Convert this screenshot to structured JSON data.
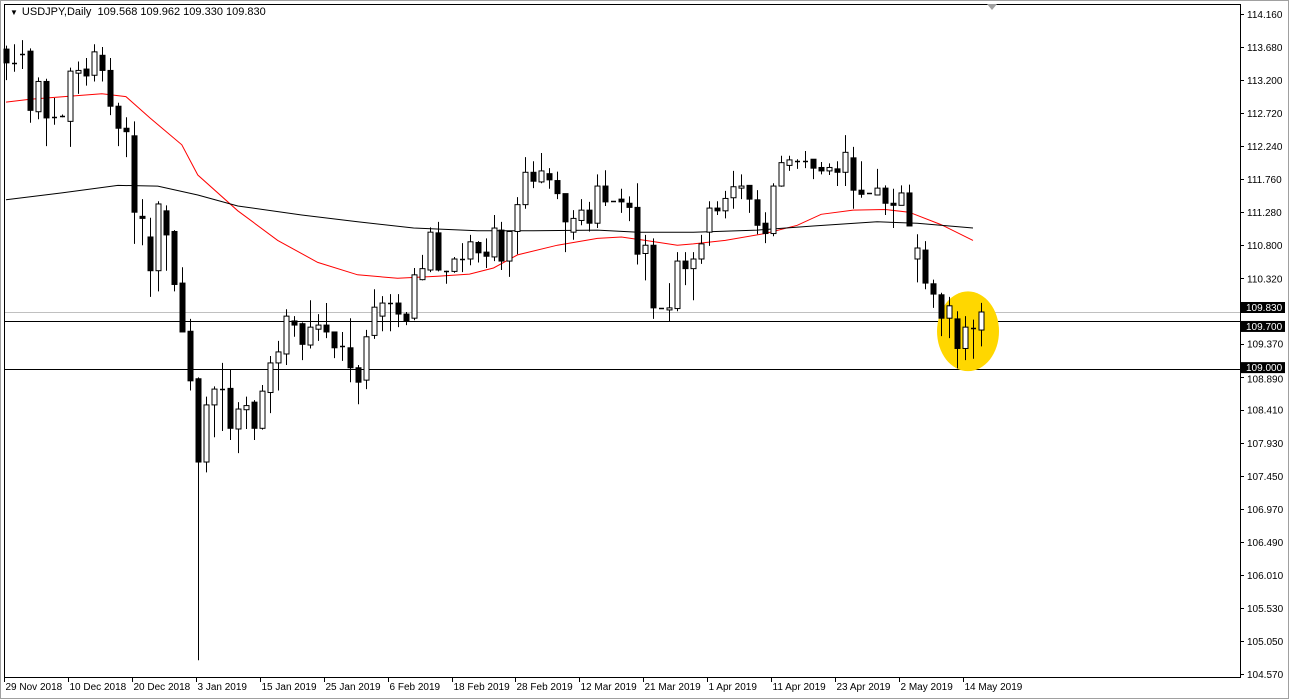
{
  "header": {
    "symbol_timeframe": "USDJPY,Daily",
    "ohlc_readout": "109.568 109.962 109.330 109.830",
    "menu_icon": "triangle-down-icon"
  },
  "colors": {
    "bull_body": "#ffffff",
    "bear_body": "#000000",
    "ma_fast": "#ff0000",
    "ma_slow": "#000000",
    "bid_line": "#c0c0c0",
    "level_lines": "#000000",
    "highlight": "#ffd700"
  },
  "chart_data": {
    "type": "candlestick",
    "symbol": "USDJPY",
    "timeframe": "Daily",
    "ylim": [
      104.57,
      114.16
    ],
    "grid": false,
    "y_ticks": [
      "114.160",
      "113.680",
      "113.200",
      "112.720",
      "112.240",
      "111.760",
      "111.280",
      "110.800",
      "110.320",
      "109.370",
      "108.890",
      "108.410",
      "107.930",
      "107.450",
      "106.970",
      "106.490",
      "106.010",
      "105.530",
      "105.050",
      "104.570"
    ],
    "price_labels": [
      {
        "value": "109.830",
        "kind": "bid"
      },
      {
        "value": "109.700",
        "kind": "level"
      },
      {
        "value": "109.000",
        "kind": "level"
      }
    ],
    "levels": [
      109.83,
      109.7,
      109.0
    ],
    "x_ticks": [
      "29 Nov 2018",
      "10 Dec 2018",
      "20 Dec 2018",
      "3 Jan 2019",
      "15 Jan 2019",
      "25 Jan 2019",
      "6 Feb 2019",
      "18 Feb 2019",
      "28 Feb 2019",
      "12 Mar 2019",
      "21 Mar 2019",
      "1 Apr 2019",
      "11 Apr 2019",
      "23 Apr 2019",
      "2 May 2019",
      "14 May 2019"
    ],
    "x_tick_every_bars": 8,
    "ohlc": [
      [
        113.65,
        113.7,
        113.2,
        113.45
      ],
      [
        113.45,
        113.72,
        113.32,
        113.43
      ],
      [
        113.58,
        113.78,
        113.36,
        113.58
      ],
      [
        113.62,
        113.66,
        112.58,
        112.76
      ],
      [
        112.74,
        113.24,
        112.63,
        113.18
      ],
      [
        113.18,
        113.22,
        112.24,
        112.65
      ],
      [
        112.66,
        112.94,
        112.55,
        112.66
      ],
      [
        112.68,
        112.7,
        112.66,
        112.68
      ],
      [
        112.6,
        113.38,
        112.23,
        113.33
      ],
      [
        113.3,
        113.47,
        113.0,
        113.34
      ],
      [
        113.36,
        113.52,
        113.12,
        113.26
      ],
      [
        113.27,
        113.72,
        113.18,
        113.61
      ],
      [
        113.56,
        113.68,
        113.18,
        113.34
      ],
      [
        113.34,
        113.52,
        112.69,
        112.82
      ],
      [
        112.82,
        112.87,
        112.24,
        112.5
      ],
      [
        112.5,
        112.66,
        112.08,
        112.45
      ],
      [
        112.39,
        112.6,
        110.82,
        111.28
      ],
      [
        111.22,
        111.47,
        110.8,
        111.19
      ],
      [
        110.92,
        111.2,
        110.05,
        110.43
      ],
      [
        110.43,
        111.44,
        110.13,
        111.4
      ],
      [
        111.3,
        111.38,
        110.43,
        110.95
      ],
      [
        111.0,
        111.02,
        110.13,
        110.23
      ],
      [
        110.25,
        110.48,
        109.54,
        109.54
      ],
      [
        109.55,
        109.73,
        108.69,
        108.83
      ],
      [
        108.86,
        108.88,
        104.77,
        107.65
      ],
      [
        107.65,
        108.6,
        107.5,
        108.48
      ],
      [
        108.48,
        108.75,
        108.01,
        108.71
      ],
      [
        108.69,
        109.09,
        108.1,
        108.71
      ],
      [
        108.72,
        108.99,
        107.97,
        108.14
      ],
      [
        108.13,
        108.52,
        107.78,
        108.42
      ],
      [
        108.41,
        108.6,
        108.13,
        108.47
      ],
      [
        108.52,
        108.55,
        107.97,
        108.14
      ],
      [
        108.14,
        108.77,
        108.12,
        108.68
      ],
      [
        108.66,
        109.19,
        108.36,
        109.09
      ],
      [
        109.09,
        109.41,
        108.69,
        109.25
      ],
      [
        109.22,
        109.87,
        109.06,
        109.77
      ],
      [
        109.7,
        109.77,
        109.47,
        109.64
      ],
      [
        109.66,
        109.68,
        109.13,
        109.36
      ],
      [
        109.35,
        110.0,
        109.3,
        109.61
      ],
      [
        109.58,
        109.8,
        109.41,
        109.64
      ],
      [
        109.64,
        109.96,
        109.45,
        109.54
      ],
      [
        109.54,
        109.54,
        109.16,
        109.31
      ],
      [
        109.31,
        109.54,
        109.12,
        109.33
      ],
      [
        109.31,
        109.74,
        108.81,
        109.02
      ],
      [
        109.02,
        109.06,
        108.49,
        108.81
      ],
      [
        108.84,
        109.57,
        108.71,
        109.47
      ],
      [
        109.49,
        110.16,
        109.44,
        109.9
      ],
      [
        109.77,
        110.06,
        109.55,
        109.96
      ],
      [
        109.96,
        110.09,
        109.55,
        109.96
      ],
      [
        109.96,
        110.09,
        109.61,
        109.8
      ],
      [
        109.8,
        109.83,
        109.64,
        109.7
      ],
      [
        109.74,
        110.47,
        109.71,
        110.37
      ],
      [
        110.3,
        110.66,
        110.29,
        110.46
      ],
      [
        110.44,
        111.06,
        110.41,
        110.99
      ],
      [
        110.98,
        111.14,
        110.42,
        110.44
      ],
      [
        110.43,
        110.43,
        110.24,
        110.42
      ],
      [
        110.42,
        110.63,
        110.4,
        110.6
      ],
      [
        110.6,
        110.83,
        110.41,
        110.6
      ],
      [
        110.6,
        110.95,
        110.51,
        110.85
      ],
      [
        110.84,
        110.86,
        110.55,
        110.69
      ],
      [
        110.7,
        110.9,
        110.47,
        110.64
      ],
      [
        110.63,
        111.24,
        110.57,
        111.05
      ],
      [
        111.02,
        111.14,
        110.44,
        110.57
      ],
      [
        110.57,
        111.0,
        110.34,
        111.0
      ],
      [
        111.0,
        111.5,
        110.67,
        111.39
      ],
      [
        111.39,
        112.08,
        111.33,
        111.86
      ],
      [
        111.86,
        112.02,
        111.63,
        111.73
      ],
      [
        111.72,
        112.14,
        111.7,
        111.88
      ],
      [
        111.84,
        111.92,
        111.62,
        111.75
      ],
      [
        111.74,
        111.87,
        111.47,
        111.55
      ],
      [
        111.55,
        111.55,
        110.7,
        111.14
      ],
      [
        110.99,
        111.31,
        110.88,
        111.19
      ],
      [
        111.16,
        111.47,
        111.09,
        111.31
      ],
      [
        111.31,
        111.43,
        111.0,
        111.12
      ],
      [
        111.12,
        111.83,
        111.05,
        111.66
      ],
      [
        111.66,
        111.89,
        111.37,
        111.43
      ],
      [
        111.44,
        111.44,
        111.44,
        111.44
      ],
      [
        111.47,
        111.62,
        111.27,
        111.43
      ],
      [
        111.41,
        111.51,
        111.15,
        111.35
      ],
      [
        111.35,
        111.7,
        110.52,
        110.67
      ],
      [
        110.68,
        110.95,
        110.29,
        110.8
      ],
      [
        110.8,
        110.9,
        109.73,
        109.89
      ],
      [
        109.89,
        109.89,
        109.89,
        109.89
      ],
      [
        109.86,
        110.25,
        109.7,
        109.89
      ],
      [
        109.88,
        110.7,
        109.84,
        110.57
      ],
      [
        110.57,
        110.7,
        110.22,
        110.46
      ],
      [
        110.46,
        110.7,
        110.0,
        110.6
      ],
      [
        110.6,
        110.95,
        110.53,
        110.82
      ],
      [
        110.99,
        111.44,
        110.79,
        111.34
      ],
      [
        111.34,
        111.44,
        111.24,
        111.3
      ],
      [
        111.3,
        111.59,
        111.19,
        111.48
      ],
      [
        111.49,
        111.88,
        111.33,
        111.65
      ],
      [
        111.63,
        111.83,
        111.47,
        111.66
      ],
      [
        111.67,
        111.67,
        111.27,
        111.47
      ],
      [
        111.46,
        111.6,
        110.96,
        111.09
      ],
      [
        111.12,
        111.28,
        110.83,
        110.97
      ],
      [
        110.97,
        111.7,
        110.93,
        111.66
      ],
      [
        111.66,
        112.1,
        111.65,
        112.0
      ],
      [
        111.96,
        112.1,
        111.88,
        112.04
      ],
      [
        112.02,
        112.05,
        111.91,
        112.02
      ],
      [
        112.0,
        112.17,
        111.92,
        112.02
      ],
      [
        112.05,
        112.05,
        111.76,
        111.92
      ],
      [
        111.93,
        112.01,
        111.83,
        111.88
      ],
      [
        111.88,
        111.99,
        111.82,
        111.93
      ],
      [
        111.91,
        112.02,
        111.66,
        111.86
      ],
      [
        111.86,
        112.4,
        111.66,
        112.15
      ],
      [
        112.07,
        112.23,
        111.33,
        111.6
      ],
      [
        111.6,
        112.02,
        111.49,
        111.54
      ],
      [
        111.56,
        111.56,
        111.56,
        111.56
      ],
      [
        111.53,
        111.91,
        111.53,
        111.63
      ],
      [
        111.63,
        111.67,
        111.24,
        111.41
      ],
      [
        111.41,
        111.62,
        111.05,
        111.38
      ],
      [
        111.38,
        111.67,
        111.38,
        111.56
      ],
      [
        111.56,
        111.68,
        111.08,
        111.08
      ],
      [
        110.6,
        110.96,
        110.26,
        110.76
      ],
      [
        110.73,
        110.86,
        110.16,
        110.25
      ],
      [
        110.24,
        110.3,
        109.89,
        110.09
      ],
      [
        110.08,
        110.11,
        109.48,
        109.74
      ],
      [
        109.74,
        110.05,
        109.45,
        109.92
      ],
      [
        109.73,
        109.84,
        109.01,
        109.3
      ],
      [
        109.3,
        109.77,
        109.13,
        109.61
      ],
      [
        109.6,
        109.72,
        109.15,
        109.6
      ],
      [
        109.568,
        109.962,
        109.33,
        109.83
      ]
    ],
    "ma_fast": [
      [
        0,
        112.88
      ],
      [
        3,
        112.92
      ],
      [
        12,
        113.0
      ],
      [
        15,
        112.96
      ],
      [
        18,
        112.65
      ],
      [
        22,
        112.26
      ],
      [
        24,
        111.82
      ],
      [
        29,
        111.3
      ],
      [
        34,
        110.87
      ],
      [
        39,
        110.55
      ],
      [
        44,
        110.37
      ],
      [
        49,
        110.32
      ],
      [
        54,
        110.35
      ],
      [
        58,
        110.38
      ],
      [
        61,
        110.47
      ],
      [
        64,
        110.66
      ],
      [
        69,
        110.8
      ],
      [
        74,
        110.9
      ],
      [
        77,
        110.92
      ],
      [
        80,
        110.87
      ],
      [
        84,
        110.8
      ],
      [
        86,
        110.82
      ],
      [
        90,
        110.87
      ],
      [
        95,
        110.97
      ],
      [
        99,
        111.09
      ],
      [
        102,
        111.25
      ],
      [
        106,
        111.31
      ],
      [
        110,
        111.32
      ],
      [
        113,
        111.28
      ],
      [
        117,
        111.1
      ],
      [
        121,
        110.87
      ]
    ],
    "ma_slow": [
      [
        0,
        111.46
      ],
      [
        7,
        111.56
      ],
      [
        14,
        111.67
      ],
      [
        19,
        111.66
      ],
      [
        24,
        111.53
      ],
      [
        29,
        111.37
      ],
      [
        37,
        111.24
      ],
      [
        44,
        111.14
      ],
      [
        51,
        111.05
      ],
      [
        59,
        111.01
      ],
      [
        66,
        111.01
      ],
      [
        74,
        111.02
      ],
      [
        79,
        110.99
      ],
      [
        86,
        110.99
      ],
      [
        94,
        111.02
      ],
      [
        101,
        111.08
      ],
      [
        109,
        111.14
      ],
      [
        114,
        111.12
      ],
      [
        121,
        111.05
      ]
    ],
    "highlight": {
      "shape": "ellipse",
      "around_bars": [
        118,
        122
      ],
      "price_range": [
        109.0,
        110.1
      ]
    }
  }
}
